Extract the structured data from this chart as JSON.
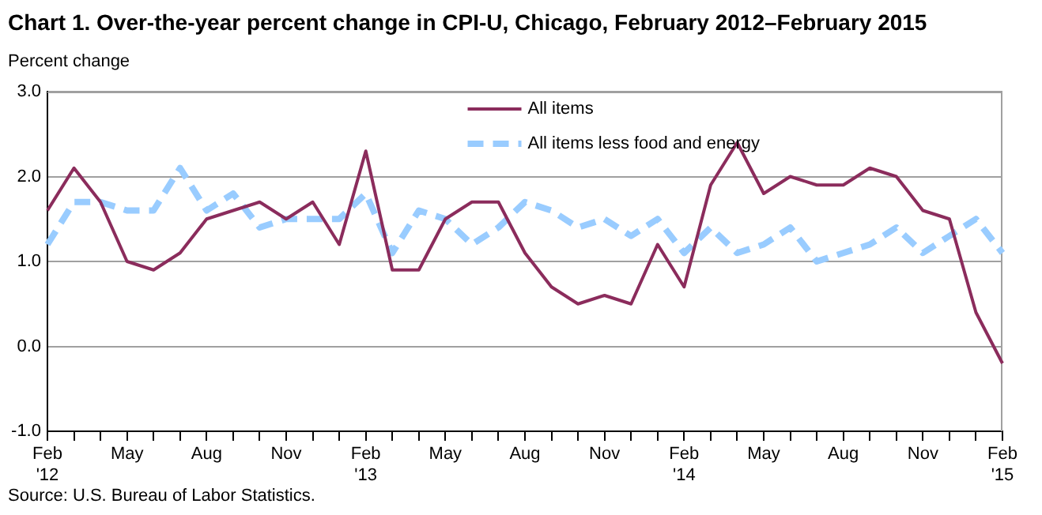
{
  "chart_data": {
    "type": "line",
    "title": "Chart 1. Over-the-year percent change in CPI-U, Chicago, February 2012–February 2015",
    "ylabel": "Percent change",
    "categories": [
      "Feb\n'12",
      null,
      null,
      "May",
      null,
      null,
      "Aug",
      null,
      null,
      "Nov",
      null,
      null,
      "Feb\n'13",
      null,
      null,
      "May",
      null,
      null,
      "Aug",
      null,
      null,
      "Nov",
      null,
      null,
      "Feb\n'14",
      null,
      null,
      "May",
      null,
      null,
      "Aug",
      null,
      null,
      "Nov",
      null,
      null,
      "Feb\n'15"
    ],
    "series": [
      {
        "name": "All items",
        "color": "#8b2c5c",
        "line_style": "solid",
        "values": [
          1.6,
          2.1,
          1.7,
          1.0,
          0.9,
          1.1,
          1.5,
          1.6,
          1.7,
          1.5,
          1.7,
          1.2,
          2.3,
          0.9,
          0.9,
          1.5,
          1.7,
          1.7,
          1.1,
          0.7,
          0.5,
          0.6,
          0.5,
          1.2,
          0.7,
          1.9,
          2.4,
          1.8,
          2.0,
          1.9,
          1.9,
          2.1,
          2.0,
          1.6,
          1.5,
          0.4,
          -0.2
        ]
      },
      {
        "name": "All items less food and energy",
        "color": "#99ccff",
        "line_style": "dashed",
        "values": [
          1.2,
          1.7,
          1.7,
          1.6,
          1.6,
          2.1,
          1.6,
          1.8,
          1.4,
          1.5,
          1.5,
          1.5,
          1.8,
          1.1,
          1.6,
          1.5,
          1.2,
          1.4,
          1.7,
          1.6,
          1.4,
          1.5,
          1.3,
          1.5,
          1.1,
          1.4,
          1.1,
          1.2,
          1.4,
          1.0,
          1.1,
          1.2,
          1.4,
          1.1,
          1.3,
          1.5,
          1.1
        ]
      }
    ],
    "ylim": [
      -1,
      3
    ],
    "yticks": [
      {
        "value": -1,
        "label": "-1.0"
      },
      {
        "value": 0,
        "label": "0.0"
      },
      {
        "value": 1,
        "label": "1.0"
      },
      {
        "value": 2,
        "label": "2.0"
      },
      {
        "value": 3,
        "label": "3.0"
      }
    ],
    "grid": "y",
    "legend": "top",
    "marker": "none",
    "annotations": [
      "Source: U.S. Bureau of Labor Statistics."
    ]
  }
}
